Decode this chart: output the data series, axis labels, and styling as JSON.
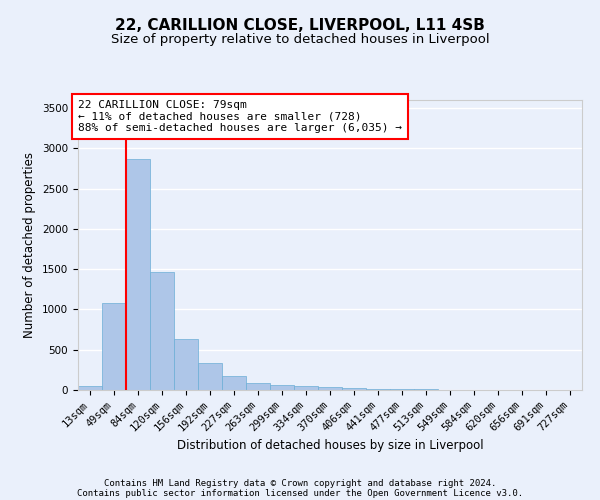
{
  "title1": "22, CARILLION CLOSE, LIVERPOOL, L11 4SB",
  "title2": "Size of property relative to detached houses in Liverpool",
  "xlabel": "Distribution of detached houses by size in Liverpool",
  "ylabel": "Number of detached properties",
  "categories": [
    "13sqm",
    "49sqm",
    "84sqm",
    "120sqm",
    "156sqm",
    "192sqm",
    "227sqm",
    "263sqm",
    "299sqm",
    "334sqm",
    "370sqm",
    "406sqm",
    "441sqm",
    "477sqm",
    "513sqm",
    "549sqm",
    "584sqm",
    "620sqm",
    "656sqm",
    "691sqm",
    "727sqm"
  ],
  "values": [
    50,
    1080,
    2870,
    1470,
    630,
    340,
    170,
    90,
    65,
    45,
    35,
    25,
    18,
    12,
    8,
    5,
    3,
    2,
    1,
    1,
    0
  ],
  "bar_color": "#aec6e8",
  "bar_edge_color": "#6baed6",
  "vline_x": 1.5,
  "vline_color": "red",
  "annotation_text": "22 CARILLION CLOSE: 79sqm\n← 11% of detached houses are smaller (728)\n88% of semi-detached houses are larger (6,035) →",
  "annotation_box_color": "white",
  "annotation_box_edge_color": "red",
  "ylim": [
    0,
    3600
  ],
  "yticks": [
    0,
    500,
    1000,
    1500,
    2000,
    2500,
    3000,
    3500
  ],
  "footnote1": "Contains HM Land Registry data © Crown copyright and database right 2024.",
  "footnote2": "Contains public sector information licensed under the Open Government Licence v3.0.",
  "bg_color": "#eaf0fb",
  "grid_color": "#ffffff",
  "title_fontsize": 11,
  "subtitle_fontsize": 9.5,
  "axis_label_fontsize": 8.5,
  "tick_fontsize": 7.5,
  "annotation_fontsize": 8,
  "footnote_fontsize": 6.5
}
